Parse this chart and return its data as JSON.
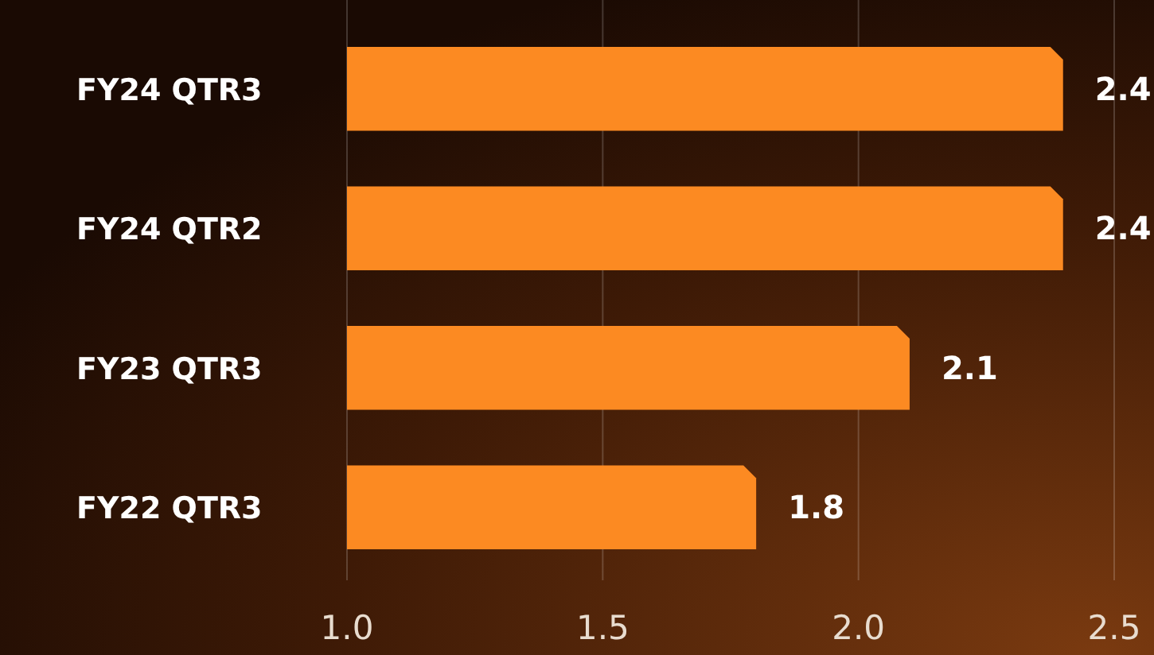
{
  "chart_data": {
    "type": "bar",
    "orientation": "horizontal",
    "categories": [
      "FY24 QTR3",
      "FY24 QTR2",
      "FY23 QTR3",
      "FY22 QTR3"
    ],
    "values": [
      2.4,
      2.4,
      2.1,
      1.8
    ],
    "color": "#fc8a22",
    "data_labels": true,
    "xlim": [
      1.0,
      2.5
    ],
    "xticks": [
      {
        "value": 1.0,
        "label": "1.0"
      },
      {
        "value": 1.5,
        "label": "1.5"
      },
      {
        "value": 2.0,
        "label": "2.0"
      },
      {
        "value": 2.5,
        "label": "2.5"
      }
    ],
    "grid": "x"
  }
}
